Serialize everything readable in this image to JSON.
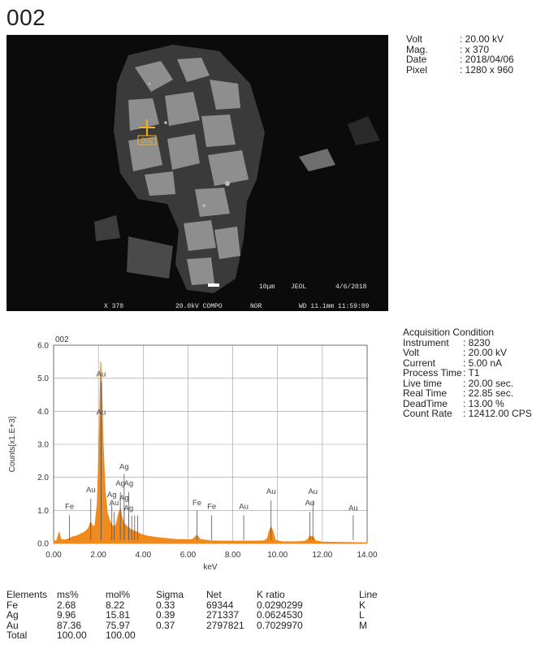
{
  "title": "002",
  "sem_image": {
    "bar_texts": [
      "X 370",
      "20.0kV COMPO",
      "NOR",
      "WD 11.1mm 11:59:09"
    ],
    "scale_label": "10μm",
    "brand": "JEOL",
    "date_stamp": "4/6/2018",
    "marker_label": "002"
  },
  "sem_info": [
    {
      "key": "Volt",
      "value": ": 20.00 kV"
    },
    {
      "key": "Mag.",
      "value": ": x 370"
    },
    {
      "key": "Date",
      "value": ": 2018/04/06"
    },
    {
      "key": "Pixel",
      "value": ": 1280 x 960"
    }
  ],
  "acquisition": {
    "heading": "Acquisition Condition",
    "rows": [
      {
        "key": "Instrument",
        "value": ": 8230"
      },
      {
        "key": "Volt",
        "value": ": 20.00 kV"
      },
      {
        "key": "Current",
        "value": ": 5.00 nA"
      },
      {
        "key": "Process Time",
        "value": ": T1"
      },
      {
        "key": "Live time",
        "value": ": 20.00 sec."
      },
      {
        "key": "Real Time",
        "value": ": 22.85 sec."
      },
      {
        "key": "DeadTime",
        "value": ": 13.00 %"
      },
      {
        "key": "Count Rate",
        "value": ": 12412.00 CPS"
      }
    ]
  },
  "chart_data": {
    "type": "area",
    "title": "002",
    "xlabel": "keV",
    "ylabel": "Counts[x1.E+3]",
    "xlim": [
      0,
      14
    ],
    "ylim": [
      0,
      6
    ],
    "x_ticks": [
      "0.00",
      "2.00",
      "4.00",
      "6.00",
      "8.00",
      "10.00",
      "12.00",
      "14.00"
    ],
    "y_ticks": [
      "0.0",
      "1.0",
      "2.0",
      "3.0",
      "4.0",
      "5.0",
      "6.0"
    ],
    "grid": true,
    "color": "#f08a1c",
    "series": [
      {
        "values": [
          [
            0,
            0.05
          ],
          [
            0.15,
            0.1
          ],
          [
            0.25,
            0.35
          ],
          [
            0.32,
            0.12
          ],
          [
            0.5,
            0.1
          ],
          [
            0.71,
            0.15
          ],
          [
            0.85,
            0.2
          ],
          [
            1.0,
            0.22
          ],
          [
            1.2,
            0.28
          ],
          [
            1.4,
            0.35
          ],
          [
            1.55,
            0.45
          ],
          [
            1.66,
            0.65
          ],
          [
            1.75,
            0.5
          ],
          [
            1.85,
            0.55
          ],
          [
            1.95,
            1.2
          ],
          [
            2.05,
            3.5
          ],
          [
            2.1,
            5.5
          ],
          [
            2.15,
            4.8
          ],
          [
            2.2,
            3.2
          ],
          [
            2.3,
            1.6
          ],
          [
            2.4,
            0.9
          ],
          [
            2.5,
            0.7
          ],
          [
            2.6,
            0.55
          ],
          [
            2.72,
            0.5
          ],
          [
            2.8,
            0.6
          ],
          [
            2.9,
            0.9
          ],
          [
            2.98,
            1.05
          ],
          [
            3.05,
            0.8
          ],
          [
            3.15,
            0.6
          ],
          [
            3.3,
            0.5
          ],
          [
            3.5,
            0.4
          ],
          [
            3.7,
            0.35
          ],
          [
            3.9,
            0.28
          ],
          [
            4.2,
            0.22
          ],
          [
            4.6,
            0.18
          ],
          [
            5.0,
            0.15
          ],
          [
            5.5,
            0.12
          ],
          [
            6.0,
            0.11
          ],
          [
            6.2,
            0.12
          ],
          [
            6.4,
            0.25
          ],
          [
            6.55,
            0.12
          ],
          [
            7.0,
            0.08
          ],
          [
            7.5,
            0.07
          ],
          [
            8.0,
            0.07
          ],
          [
            8.5,
            0.07
          ],
          [
            9.0,
            0.07
          ],
          [
            9.4,
            0.08
          ],
          [
            9.55,
            0.15
          ],
          [
            9.62,
            0.35
          ],
          [
            9.71,
            0.5
          ],
          [
            9.8,
            0.35
          ],
          [
            9.9,
            0.1
          ],
          [
            10.2,
            0.05
          ],
          [
            10.8,
            0.05
          ],
          [
            11.2,
            0.06
          ],
          [
            11.35,
            0.12
          ],
          [
            11.44,
            0.22
          ],
          [
            11.58,
            0.2
          ],
          [
            11.7,
            0.08
          ],
          [
            12.0,
            0.04
          ],
          [
            13.0,
            0.03
          ],
          [
            14.0,
            0.02
          ]
        ]
      }
    ],
    "peak_labels": [
      {
        "label": "Fe",
        "x": 0.71,
        "line_top": 0.85,
        "text_y": 1.05
      },
      {
        "label": "Au",
        "x": 1.66,
        "line_top": 1.35,
        "text_y": 1.55
      },
      {
        "label": "Au",
        "x": 2.12,
        "line_top": 4.9,
        "text_y": 5.05
      },
      {
        "label": "Au",
        "x": 2.12,
        "line_top": 3.8,
        "text_y": 3.9
      },
      {
        "label": "Ag",
        "x": 2.6,
        "line_top": 1.2,
        "text_y": 1.4
      },
      {
        "label": "Au",
        "x": 2.7,
        "line_top": 0.95,
        "text_y": 1.15
      },
      {
        "label": "Ag",
        "x": 2.98,
        "line_top": 1.55,
        "text_y": 1.75
      },
      {
        "label": "Ag",
        "x": 3.15,
        "line_top": 2.1,
        "text_y": 2.25
      },
      {
        "label": "Ag",
        "x": 3.15,
        "line_top": 1.15,
        "text_y": 1.3
      },
      {
        "label": "Ag",
        "x": 3.35,
        "line_top": 1.55,
        "text_y": 1.75
      },
      {
        "label": "Ag",
        "x": 3.35,
        "line_top": 0.9,
        "text_y": 1.0
      },
      {
        "label": "Fe",
        "x": 6.4,
        "line_top": 1.0,
        "text_y": 1.15
      },
      {
        "label": "Fe",
        "x": 7.06,
        "line_top": 0.85,
        "text_y": 1.05
      },
      {
        "label": "Au",
        "x": 8.49,
        "line_top": 0.85,
        "text_y": 1.05
      },
      {
        "label": "Au",
        "x": 9.71,
        "line_top": 1.3,
        "text_y": 1.5
      },
      {
        "label": "Au",
        "x": 11.44,
        "line_top": 0.95,
        "text_y": 1.15
      },
      {
        "label": "Au",
        "x": 11.58,
        "line_top": 1.3,
        "text_y": 1.5
      },
      {
        "label": "Au",
        "x": 13.38,
        "line_top": 0.85,
        "text_y": 1.0
      }
    ],
    "extra_lines": [
      3.49,
      3.62,
      3.75
    ]
  },
  "elements_table": {
    "headers": [
      "Elements",
      "ms%",
      "mol%",
      "Sigma",
      "Net",
      "K ratio",
      "Line"
    ],
    "rows": [
      [
        "Fe",
        "2.68",
        "8.22",
        "0.33",
        "69344",
        "0.0290299",
        "K"
      ],
      [
        "Ag",
        "9.96",
        "15.81",
        "0.39",
        "271337",
        "0.0624530",
        "L"
      ],
      [
        "Au",
        "87.36",
        "75.97",
        "0.37",
        "2797821",
        "0.7029970",
        "M"
      ],
      [
        "Total",
        "100.00",
        "100.00",
        "",
        "",
        "",
        ""
      ]
    ]
  }
}
